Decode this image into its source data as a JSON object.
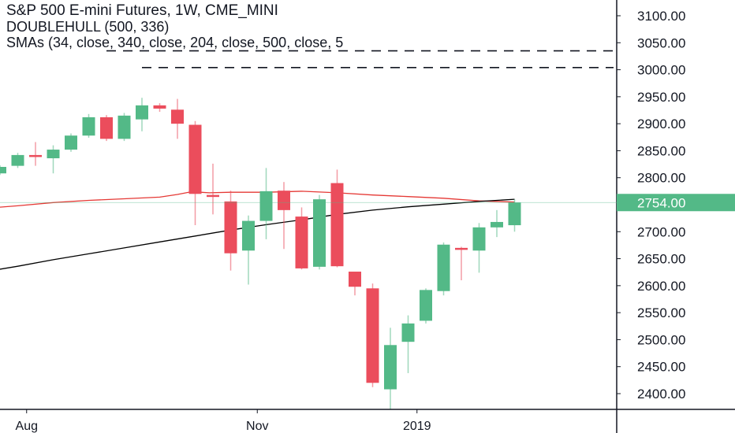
{
  "chart_data": {
    "type": "candlestick",
    "title": "S&P 500 E-mini Futures, 1W, CME_MINI",
    "indicators": [
      "DOUBLEHULL (500, 336)",
      "SMAs (34, close, 340, close, 204, close, 500, close, 5"
    ],
    "y_axis": {
      "ticks": [
        "3100.00",
        "3050.00",
        "3000.00",
        "2950.00",
        "2900.00",
        "2850.00",
        "2800.00",
        "2750.00",
        "2700.00",
        "2650.00",
        "2600.00",
        "2550.00",
        "2500.00",
        "2450.00",
        "2400.00"
      ],
      "tick_values": [
        3100,
        3050,
        3000,
        2950,
        2900,
        2850,
        2800,
        2750,
        2700,
        2650,
        2600,
        2550,
        2500,
        2450,
        2400
      ],
      "range": [
        2372,
        3128
      ]
    },
    "x_axis": {
      "labels": [
        {
          "text": "Aug",
          "index": 1.5
        },
        {
          "text": "Nov",
          "index": 14.5
        },
        {
          "text": "2019",
          "index": 23.5
        }
      ]
    },
    "last_price": {
      "label": "2754.00",
      "value": 2754,
      "color": "#53b987"
    },
    "candles": [
      {
        "o": 2808,
        "h": 2823,
        "l": 2805,
        "c": 2820
      },
      {
        "o": 2822,
        "h": 2846,
        "l": 2818,
        "c": 2842
      },
      {
        "o": 2842,
        "h": 2866,
        "l": 2822,
        "c": 2840
      },
      {
        "o": 2836,
        "h": 2860,
        "l": 2808,
        "c": 2852
      },
      {
        "o": 2852,
        "h": 2882,
        "l": 2848,
        "c": 2878
      },
      {
        "o": 2878,
        "h": 2918,
        "l": 2874,
        "c": 2912
      },
      {
        "o": 2912,
        "h": 2916,
        "l": 2868,
        "c": 2872
      },
      {
        "o": 2872,
        "h": 2920,
        "l": 2868,
        "c": 2915
      },
      {
        "o": 2908,
        "h": 2948,
        "l": 2886,
        "c": 2934
      },
      {
        "o": 2934,
        "h": 2938,
        "l": 2922,
        "c": 2928
      },
      {
        "o": 2926,
        "h": 2946,
        "l": 2872,
        "c": 2900
      },
      {
        "o": 2898,
        "h": 2905,
        "l": 2712,
        "c": 2770
      },
      {
        "o": 2768,
        "h": 2826,
        "l": 2732,
        "c": 2765
      },
      {
        "o": 2756,
        "h": 2776,
        "l": 2628,
        "c": 2660
      },
      {
        "o": 2665,
        "h": 2730,
        "l": 2602,
        "c": 2720
      },
      {
        "o": 2720,
        "h": 2818,
        "l": 2686,
        "c": 2775
      },
      {
        "o": 2776,
        "h": 2792,
        "l": 2668,
        "c": 2740
      },
      {
        "o": 2728,
        "h": 2745,
        "l": 2630,
        "c": 2632
      },
      {
        "o": 2635,
        "h": 2768,
        "l": 2630,
        "c": 2760
      },
      {
        "o": 2790,
        "h": 2815,
        "l": 2634,
        "c": 2636
      },
      {
        "o": 2626,
        "h": 2624,
        "l": 2582,
        "c": 2598
      },
      {
        "o": 2595,
        "h": 2604,
        "l": 2412,
        "c": 2420
      },
      {
        "o": 2408,
        "h": 2522,
        "l": 2370,
        "c": 2490
      },
      {
        "o": 2496,
        "h": 2545,
        "l": 2438,
        "c": 2530
      },
      {
        "o": 2535,
        "h": 2595,
        "l": 2530,
        "c": 2592
      },
      {
        "o": 2590,
        "h": 2680,
        "l": 2582,
        "c": 2676
      },
      {
        "o": 2670,
        "h": 2672,
        "l": 2610,
        "c": 2668
      },
      {
        "o": 2665,
        "h": 2716,
        "l": 2624,
        "c": 2708
      },
      {
        "o": 2708,
        "h": 2740,
        "l": 2690,
        "c": 2718
      },
      {
        "o": 2712,
        "h": 2760,
        "l": 2700,
        "c": 2754
      }
    ],
    "overlays": [
      {
        "name": "red-sma",
        "color": "#e53935",
        "points": [
          [
            -1,
            2743
          ],
          [
            1,
            2748
          ],
          [
            3,
            2754
          ],
          [
            5,
            2758
          ],
          [
            7,
            2761
          ],
          [
            9,
            2764
          ],
          [
            10,
            2769
          ],
          [
            10.8,
            2774
          ],
          [
            11.8,
            2772
          ],
          [
            13,
            2773
          ],
          [
            15,
            2773
          ],
          [
            17,
            2775
          ],
          [
            19,
            2772
          ],
          [
            21,
            2768
          ],
          [
            23,
            2765
          ],
          [
            25,
            2762
          ],
          [
            27,
            2757
          ],
          [
            29,
            2755
          ]
        ]
      },
      {
        "name": "black-sma",
        "color": "#000000",
        "points": [
          [
            -1,
            2625
          ],
          [
            1,
            2636
          ],
          [
            3,
            2648
          ],
          [
            5,
            2659
          ],
          [
            7,
            2670
          ],
          [
            9,
            2681
          ],
          [
            11,
            2692
          ],
          [
            13,
            2703
          ],
          [
            15,
            2713
          ],
          [
            17,
            2722
          ],
          [
            19,
            2732
          ],
          [
            21,
            2740
          ],
          [
            23,
            2746
          ],
          [
            25,
            2751
          ],
          [
            27,
            2756
          ],
          [
            29,
            2760
          ]
        ]
      }
    ],
    "dashed_levels": [
      {
        "value": 3035,
        "x_from": 6,
        "x_to": 30
      },
      {
        "value": 3004,
        "x_from": 8,
        "x_to": 30
      }
    ]
  }
}
